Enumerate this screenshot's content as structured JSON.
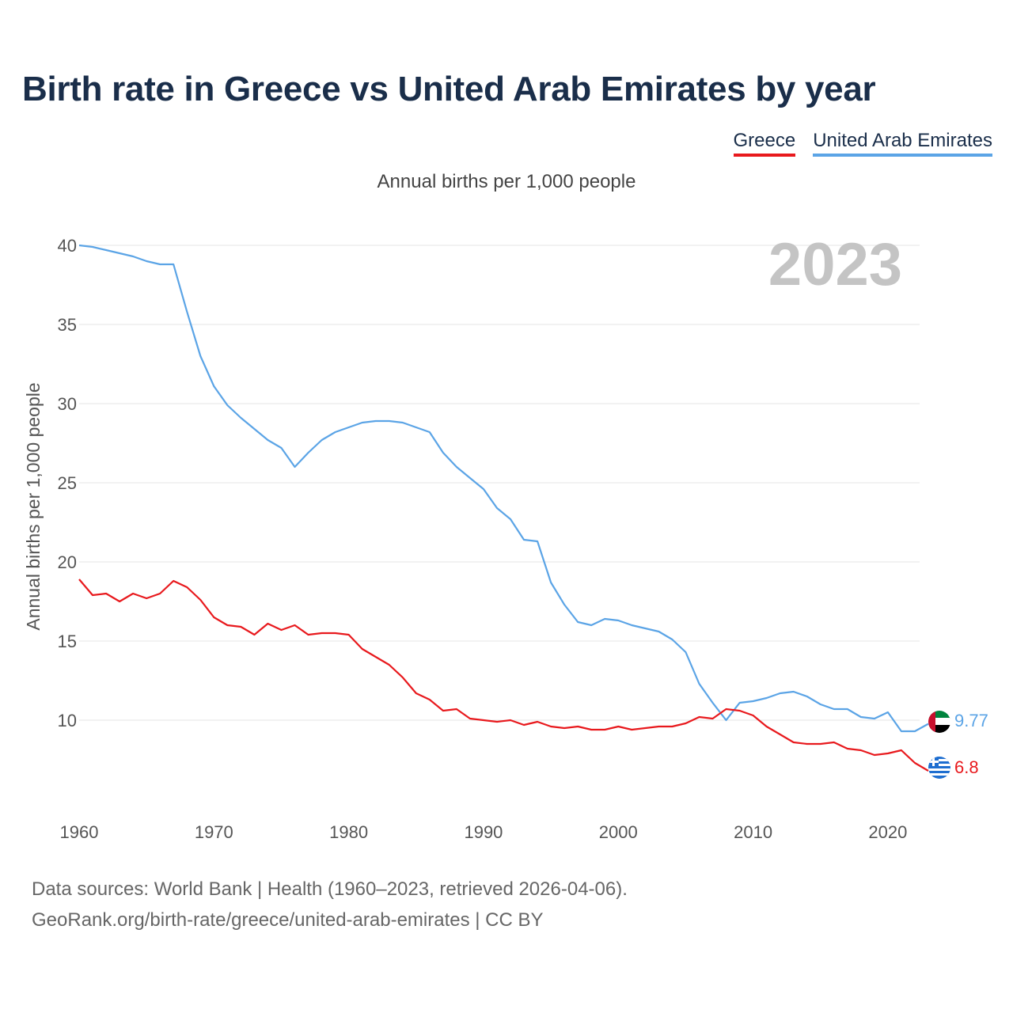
{
  "title": "Birth rate in Greece vs United Arab Emirates by year",
  "subtitle": "Annual births per 1,000 people",
  "legend": [
    {
      "label": "Greece",
      "color": "#e8191d"
    },
    {
      "label": "United Arab Emirates",
      "color": "#5ba4e6"
    }
  ],
  "year_watermark": "2023",
  "end_labels": {
    "uae": "9.77",
    "greece": "6.8"
  },
  "footer": {
    "line1": "Data sources: World Bank | Health (1960–2023, retrieved 2026-04-06).",
    "line2": "GeoRank.org/birth-rate/greece/united-arab-emirates | CC BY"
  },
  "chart_data": {
    "type": "line",
    "title": "Birth rate in Greece vs United Arab Emirates by year",
    "xlabel": "",
    "ylabel": "Annual births per 1,000 people",
    "xlim": [
      1960,
      2023
    ],
    "ylim": [
      5,
      40
    ],
    "xticks": [
      1960,
      1970,
      1980,
      1990,
      2000,
      2010,
      2020
    ],
    "yticks": [
      10,
      15,
      20,
      25,
      30,
      35,
      40
    ],
    "grid": true,
    "legend_position": "top-right",
    "x": [
      1960,
      1961,
      1962,
      1963,
      1964,
      1965,
      1966,
      1967,
      1968,
      1969,
      1970,
      1971,
      1972,
      1973,
      1974,
      1975,
      1976,
      1977,
      1978,
      1979,
      1980,
      1981,
      1982,
      1983,
      1984,
      1985,
      1986,
      1987,
      1988,
      1989,
      1990,
      1991,
      1992,
      1993,
      1994,
      1995,
      1996,
      1997,
      1998,
      1999,
      2000,
      2001,
      2002,
      2003,
      2004,
      2005,
      2006,
      2007,
      2008,
      2009,
      2010,
      2011,
      2012,
      2013,
      2014,
      2015,
      2016,
      2017,
      2018,
      2019,
      2020,
      2021,
      2022,
      2023
    ],
    "series": [
      {
        "name": "Greece",
        "color": "#e8191d",
        "values": [
          18.9,
          17.9,
          18.0,
          17.5,
          18.0,
          17.7,
          18.0,
          18.8,
          18.4,
          17.6,
          16.5,
          16.0,
          15.9,
          15.4,
          16.1,
          15.7,
          16.0,
          15.4,
          15.5,
          15.5,
          15.4,
          14.5,
          14.0,
          13.5,
          12.7,
          11.7,
          11.3,
          10.6,
          10.7,
          10.1,
          10.0,
          9.9,
          10.0,
          9.7,
          9.9,
          9.6,
          9.5,
          9.6,
          9.4,
          9.4,
          9.6,
          9.4,
          9.5,
          9.6,
          9.6,
          9.8,
          10.2,
          10.1,
          10.7,
          10.6,
          10.3,
          9.6,
          9.1,
          8.6,
          8.5,
          8.5,
          8.6,
          8.2,
          8.1,
          7.8,
          7.9,
          8.1,
          7.3,
          6.8
        ]
      },
      {
        "name": "United Arab Emirates",
        "color": "#5ba4e6",
        "values": [
          40.0,
          39.9,
          39.7,
          39.5,
          39.3,
          39.0,
          38.8,
          38.8,
          35.8,
          33.0,
          31.1,
          29.9,
          29.1,
          28.4,
          27.7,
          27.2,
          26.0,
          26.9,
          27.7,
          28.2,
          28.5,
          28.8,
          28.9,
          28.9,
          28.8,
          28.5,
          28.2,
          26.9,
          26.0,
          25.3,
          24.6,
          23.4,
          22.7,
          21.4,
          21.3,
          18.7,
          17.3,
          16.2,
          16.0,
          16.4,
          16.3,
          16.0,
          15.8,
          15.6,
          15.1,
          14.3,
          12.3,
          11.1,
          10.0,
          11.1,
          11.2,
          11.4,
          11.7,
          11.8,
          11.5,
          11.0,
          10.7,
          10.7,
          10.2,
          10.1,
          10.5,
          9.3,
          9.3,
          9.77
        ]
      }
    ]
  }
}
